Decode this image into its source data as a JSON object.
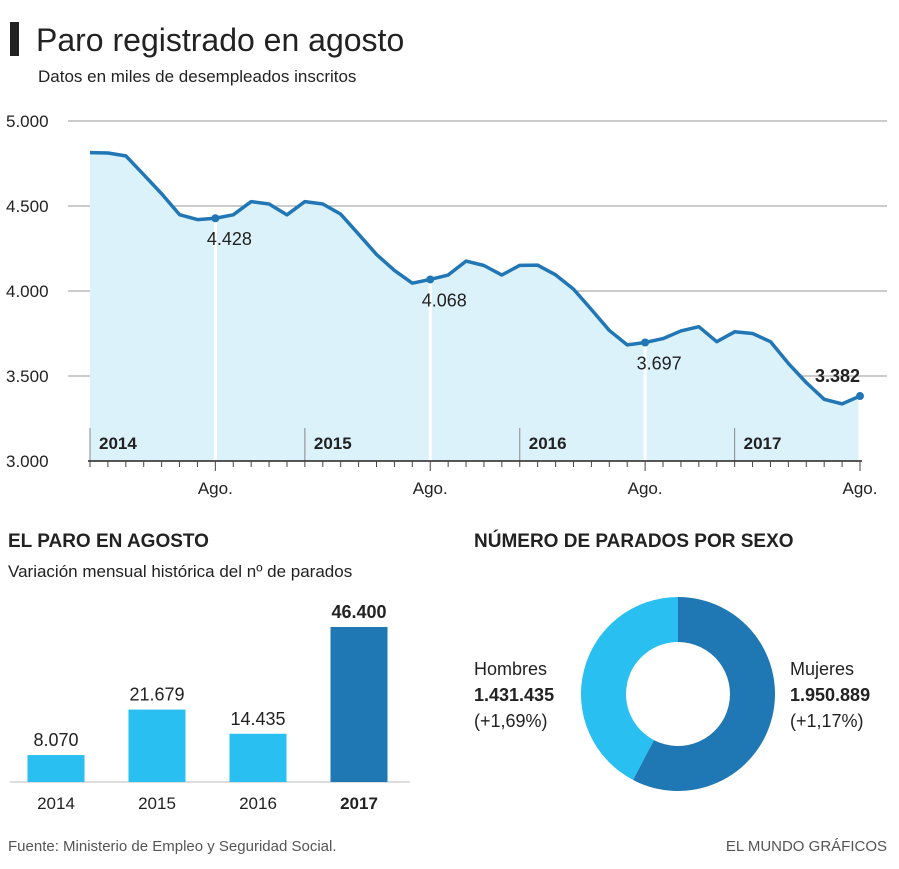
{
  "chart_data": [
    {
      "type": "line",
      "title": "Paro registrado en agosto",
      "subtitle": "Datos en miles de desempleados inscritos",
      "categories": [
        null,
        null,
        null,
        null,
        null,
        null,
        null,
        "Ago.",
        null,
        null,
        null,
        null,
        null,
        null,
        null,
        null,
        null,
        null,
        null,
        "Ago.",
        null,
        null,
        null,
        null,
        null,
        null,
        null,
        null,
        null,
        null,
        null,
        "Ago.",
        null,
        null,
        null,
        null,
        null,
        null,
        null,
        null,
        null,
        null,
        null,
        "Ago."
      ],
      "years": [
        "2014",
        "2015",
        "2016",
        "2017"
      ],
      "values": [
        4814,
        4812,
        4795,
        4684,
        4572,
        4449,
        4420,
        4428,
        4448,
        4526,
        4512,
        4448,
        4526,
        4512,
        4452,
        4334,
        4215,
        4121,
        4046,
        4068,
        4094,
        4176,
        4150,
        4094,
        4151,
        4152,
        4095,
        4011,
        3891,
        3768,
        3683,
        3697,
        3720,
        3765,
        3790,
        3702,
        3760,
        3750,
        3702,
        3574,
        3461,
        3363,
        3336,
        3382
      ],
      "value_labels": [
        null,
        null,
        null,
        null,
        null,
        null,
        null,
        "4.428",
        null,
        null,
        null,
        null,
        null,
        null,
        null,
        null,
        null,
        null,
        null,
        "4.068",
        null,
        null,
        null,
        null,
        null,
        null,
        null,
        null,
        null,
        null,
        null,
        "3.697",
        null,
        null,
        null,
        null,
        null,
        null,
        null,
        null,
        null,
        null,
        null,
        "3.382"
      ],
      "color": "#2176b5",
      "area_color": "#dcf2fb",
      "ylim": [
        3000,
        5000
      ],
      "yticks": [
        {
          "value": 3000,
          "label": "3.000"
        },
        {
          "value": 3500,
          "label": "3.500"
        },
        {
          "value": 4000,
          "label": "4.000"
        },
        {
          "value": 4500,
          "label": "4.500"
        },
        {
          "value": 5000,
          "label": "5.000"
        }
      ],
      "grid": true
    },
    {
      "type": "bar",
      "title": "EL PARO EN AGOSTO",
      "subtitle": "Variación mensual histórica del nº de parados",
      "categories": [
        "2014",
        "2015",
        "2016",
        "2017"
      ],
      "values": [
        8070,
        21679,
        14435,
        46400
      ],
      "value_labels": [
        "8.070",
        "21.679",
        "14.435",
        "46.400"
      ],
      "colors": [
        "#29bff0",
        "#29bff0",
        "#29bff0",
        "#1f77b4"
      ]
    },
    {
      "type": "pie",
      "title": "NÚMERO DE PARADOS POR SEXO",
      "categories": [
        "Mujeres",
        "Hombres"
      ],
      "values": [
        1950889,
        1431435
      ],
      "value_labels": [
        "1.950.889",
        "1.431.435"
      ],
      "change_labels": [
        "(+1,17%)",
        "(+1,69%)"
      ],
      "colors": [
        "#1f77b4",
        "#29bff0"
      ]
    }
  ],
  "source": "Fuente: Ministerio de Empleo y Seguridad Social.",
  "credit": "EL MUNDO GRÁFICOS"
}
